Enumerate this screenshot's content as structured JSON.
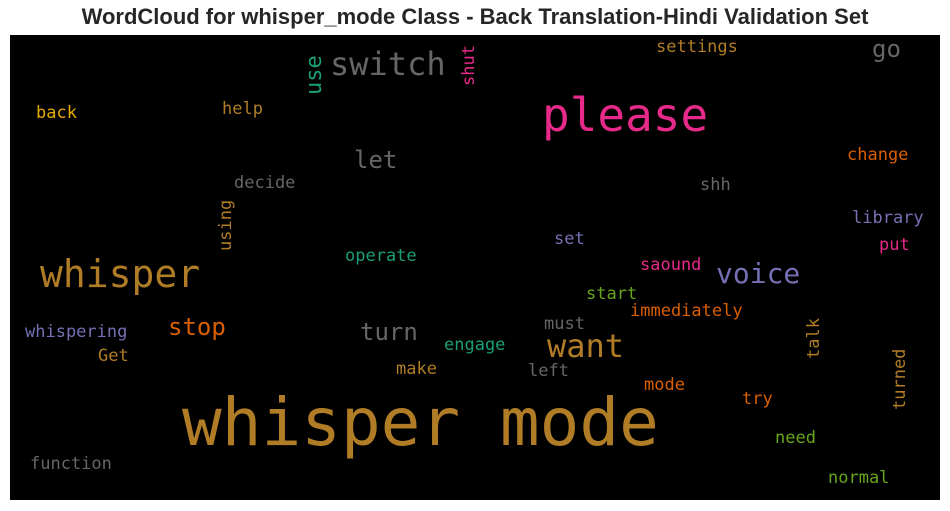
{
  "chart_data": {
    "type": "wordcloud",
    "title": "WordCloud for whisper_mode Class - Back Translation-Hindi Validation Set",
    "words": [
      {
        "text": "whisper mode",
        "color": "#b07d26",
        "rotated": false
      },
      {
        "text": "please",
        "color": "#e7298a",
        "rotated": false
      },
      {
        "text": "whisper",
        "color": "#b07d26",
        "rotated": false
      },
      {
        "text": "switch",
        "color": "#666666",
        "rotated": false
      },
      {
        "text": "want",
        "color": "#b07d26",
        "rotated": false
      },
      {
        "text": "voice",
        "color": "#7570b3",
        "rotated": false
      },
      {
        "text": "use",
        "color": "#1b9e77",
        "rotated": true
      },
      {
        "text": "go",
        "color": "#666666",
        "rotated": false
      },
      {
        "text": "stop",
        "color": "#d95f02",
        "rotated": false
      },
      {
        "text": "turn",
        "color": "#666666",
        "rotated": false
      },
      {
        "text": "let",
        "color": "#666666",
        "rotated": false
      },
      {
        "text": "shut",
        "color": "#e7298a",
        "rotated": true
      },
      {
        "text": "settings",
        "color": "#b07d26",
        "rotated": false
      },
      {
        "text": "back",
        "color": "#e6ab02",
        "rotated": false
      },
      {
        "text": "help",
        "color": "#b07d26",
        "rotated": false
      },
      {
        "text": "change",
        "color": "#d95f02",
        "rotated": false
      },
      {
        "text": "decide",
        "color": "#666666",
        "rotated": false
      },
      {
        "text": "shh",
        "color": "#666666",
        "rotated": false
      },
      {
        "text": "using",
        "color": "#b07d26",
        "rotated": true
      },
      {
        "text": "library",
        "color": "#7570b3",
        "rotated": false
      },
      {
        "text": "set",
        "color": "#7570b3",
        "rotated": false
      },
      {
        "text": "put",
        "color": "#e7298a",
        "rotated": false
      },
      {
        "text": "operate",
        "color": "#1b9e77",
        "rotated": false
      },
      {
        "text": "saound",
        "color": "#e7298a",
        "rotated": false
      },
      {
        "text": "start",
        "color": "#66a61e",
        "rotated": false
      },
      {
        "text": "immediately",
        "color": "#d95f02",
        "rotated": false
      },
      {
        "text": "whispering",
        "color": "#7570b3",
        "rotated": false
      },
      {
        "text": "must",
        "color": "#666666",
        "rotated": false
      },
      {
        "text": "talk",
        "color": "#b07d26",
        "rotated": true
      },
      {
        "text": "engage",
        "color": "#1b9e77",
        "rotated": false
      },
      {
        "text": "Get",
        "color": "#b07d26",
        "rotated": false
      },
      {
        "text": "make",
        "color": "#b07d26",
        "rotated": false
      },
      {
        "text": "left",
        "color": "#666666",
        "rotated": false
      },
      {
        "text": "mode",
        "color": "#d95f02",
        "rotated": false
      },
      {
        "text": "turned",
        "color": "#b07d26",
        "rotated": true
      },
      {
        "text": "try",
        "color": "#d95f02",
        "rotated": false
      },
      {
        "text": "need",
        "color": "#66a61e",
        "rotated": false
      },
      {
        "text": "function",
        "color": "#666666",
        "rotated": false
      },
      {
        "text": "normal",
        "color": "#66a61e",
        "rotated": false
      }
    ]
  }
}
